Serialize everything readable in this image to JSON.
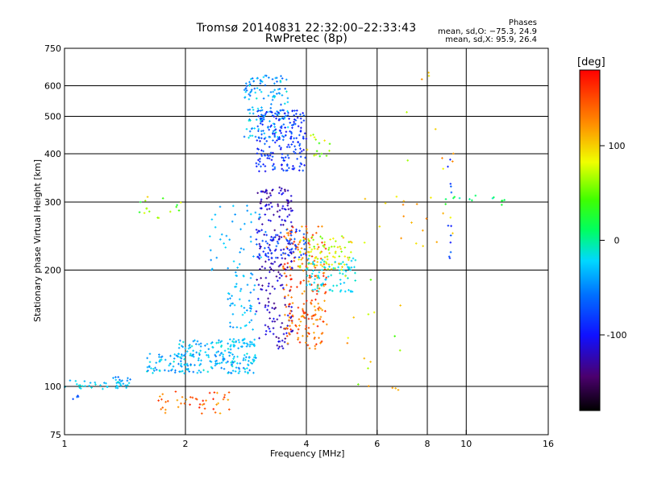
{
  "chart_data": {
    "type": "scatter",
    "title": "Tromsø 20140831 22:32:00–22:33:43",
    "subtitle": "RwPretec (8p)",
    "xlabel": "Frequency [MHz]",
    "ylabel": "Stationary phase Virtual Height [km]",
    "x_scale": "log",
    "y_scale": "log",
    "xlim": [
      1,
      16
    ],
    "ylim": [
      75,
      750
    ],
    "x_ticks": [
      1,
      2,
      4,
      6,
      8,
      10,
      16
    ],
    "x_tick_labels": [
      "1",
      "2",
      "4",
      "6",
      "8",
      "10",
      "16"
    ],
    "y_ticks": [
      75,
      100,
      200,
      300,
      400,
      500,
      600,
      750
    ],
    "y_tick_labels": [
      "75",
      "100",
      "200",
      "300",
      "400",
      "500",
      "600",
      "750"
    ],
    "grid_x": [
      2,
      4,
      6,
      8,
      10
    ],
    "grid_y": [
      100,
      200,
      300,
      400,
      500,
      600
    ],
    "colorbar": {
      "label": "[deg]",
      "range": [
        -180,
        180
      ],
      "tick_values": [
        100,
        0,
        -100
      ],
      "tick_labels": [
        "100",
        "0",
        "-100"
      ]
    },
    "stats_heading": "Phases",
    "stats": [
      "mean, sd,O: −75.3, 24.9",
      "mean, sd,X:  95.9, 26.4"
    ],
    "clusters": [
      {
        "f": [
          1.0,
          1.45
        ],
        "h": [
          98,
          104
        ],
        "phase": [
          -40,
          -10
        ],
        "n": 40
      },
      {
        "f": [
          1.05,
          1.1
        ],
        "h": [
          92,
          95
        ],
        "phase": [
          -90,
          -60
        ],
        "n": 4
      },
      {
        "f": [
          1.3,
          1.5
        ],
        "h": [
          103,
          107
        ],
        "phase": [
          -70,
          -40
        ],
        "n": 8
      },
      {
        "f": [
          1.6,
          3.0
        ],
        "h": [
          108,
          122
        ],
        "phase": [
          -60,
          -10
        ],
        "n": 170
      },
      {
        "f": [
          1.9,
          2.7
        ],
        "h": [
          120,
          133
        ],
        "phase": [
          -50,
          -10
        ],
        "n": 60
      },
      {
        "f": [
          1.7,
          2.6
        ],
        "h": [
          85,
          97
        ],
        "phase": [
          110,
          170
        ],
        "n": 45
      },
      {
        "f": [
          2.55,
          3.0
        ],
        "h": [
          125,
          133
        ],
        "phase": [
          -40,
          -20
        ],
        "n": 35
      },
      {
        "f": [
          2.55,
          3.0
        ],
        "h": [
          140,
          200
        ],
        "phase": [
          -50,
          -20
        ],
        "n": 50
      },
      {
        "f": [
          2.8,
          3.6
        ],
        "h": [
          440,
          640
        ],
        "phase": [
          -70,
          -10
        ],
        "n": 150
      },
      {
        "f": [
          3.0,
          4.0
        ],
        "h": [
          360,
          520
        ],
        "phase": [
          -110,
          -60
        ],
        "n": 190
      },
      {
        "f": [
          3.0,
          3.7
        ],
        "h": [
          125,
          330
        ],
        "phase": [
          -140,
          -100
        ],
        "n": 220
      },
      {
        "f": [
          3.5,
          4.5
        ],
        "h": [
          125,
          260
        ],
        "phase": [
          110,
          170
        ],
        "n": 210
      },
      {
        "f": [
          3.8,
          5.2
        ],
        "h": [
          200,
          245
        ],
        "phase": [
          50,
          110
        ],
        "n": 90
      },
      {
        "f": [
          3.0,
          4.0
        ],
        "h": [
          215,
          255
        ],
        "phase": [
          -100,
          -60
        ],
        "n": 70
      },
      {
        "f": [
          4.0,
          5.3
        ],
        "h": [
          175,
          215
        ],
        "phase": [
          -30,
          -10
        ],
        "n": 80
      },
      {
        "f": [
          2.3,
          3.2
        ],
        "h": [
          200,
          300
        ],
        "phase": [
          -50,
          -20
        ],
        "n": 40
      },
      {
        "f": [
          1.5,
          2.0
        ],
        "h": [
          270,
          310
        ],
        "phase": [
          20,
          110
        ],
        "n": 16
      },
      {
        "f": [
          4.0,
          4.6
        ],
        "h": [
          390,
          450
        ],
        "phase": [
          30,
          100
        ],
        "n": 15
      },
      {
        "f": [
          5.5,
          9.5
        ],
        "h": [
          230,
          320
        ],
        "phase": [
          70,
          130
        ],
        "n": 20
      },
      {
        "f": [
          8.6,
          12.5
        ],
        "h": [
          295,
          315
        ],
        "phase": [
          -10,
          30
        ],
        "n": 14
      },
      {
        "f": [
          6.5,
          9.5
        ],
        "h": [
          350,
          680
        ],
        "phase": [
          60,
          150
        ],
        "n": 10
      },
      {
        "f": [
          9.0,
          9.2
        ],
        "h": [
          210,
          410
        ],
        "phase": [
          -100,
          -60
        ],
        "n": 12
      },
      {
        "f": [
          5.0,
          7.0
        ],
        "h": [
          95,
          200
        ],
        "phase": [
          40,
          130
        ],
        "n": 18
      }
    ]
  }
}
